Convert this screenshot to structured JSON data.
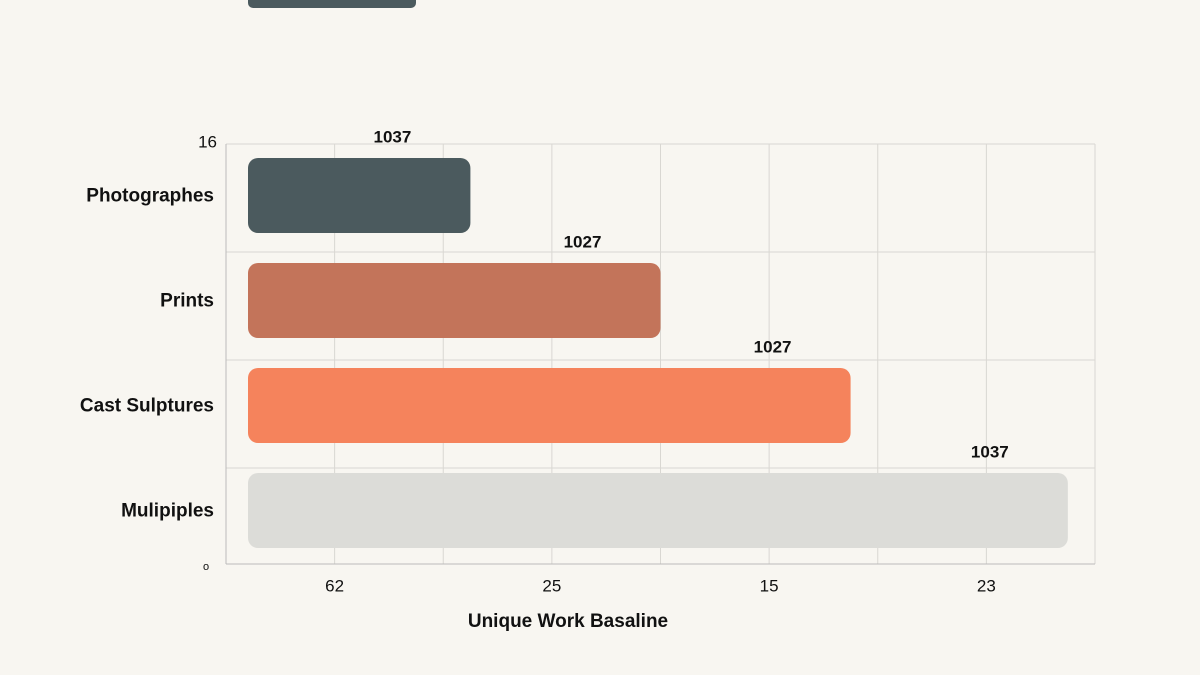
{
  "chart_data": {
    "type": "hbar",
    "categories": [
      "Photographes",
      "Prints",
      "Cast Sulptures",
      "Mulipiples"
    ],
    "values": [
      2.25,
      4.0,
      5.75,
      7.75
    ],
    "colors": [
      "#4b5a5e",
      "#c3745a",
      "#f5835c",
      "#dcdcd8"
    ],
    "annotations": [
      "1037",
      "1027",
      "1027",
      "1037"
    ],
    "x_label": "Unique Work Basaline",
    "y_axis_top_label": "16",
    "y_axis_bottom_label": "o",
    "xlim": [
      0,
      8
    ],
    "xticks": [
      {
        "value": 1,
        "label": "62"
      },
      {
        "value": 2,
        "label": null
      },
      {
        "value": 3,
        "label": "25"
      },
      {
        "value": 4,
        "label": null
      },
      {
        "value": 5,
        "label": "15"
      },
      {
        "value": 6,
        "label": null
      },
      {
        "value": 7,
        "label": "23"
      },
      {
        "value": 8,
        "label": null
      }
    ],
    "grid": true
  }
}
